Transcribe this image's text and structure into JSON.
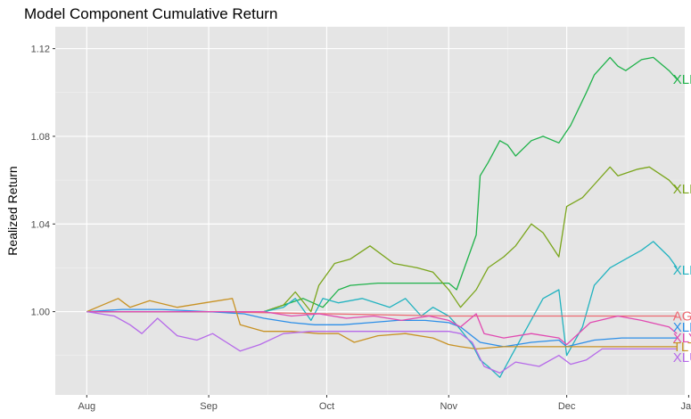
{
  "chart_data": {
    "type": "line",
    "title": "Model Component Cumulative Return",
    "xlabel": "",
    "ylabel": "Realized Return",
    "x_ticks": [
      "Aug",
      "Sep",
      "Oct",
      "Nov",
      "Dec",
      "Jan"
    ],
    "x_tick_dates": [
      "2016-08-01",
      "2016-09-01",
      "2016-10-01",
      "2016-11-01",
      "2016-12-01",
      "2017-01-01"
    ],
    "xlim": [
      "2016-07-24",
      "2016-12-31"
    ],
    "y_ticks": [
      "1.00",
      "1.04",
      "1.08",
      "1.12"
    ],
    "y_tick_values": [
      1.0,
      1.04,
      1.08,
      1.12
    ],
    "ylim": [
      0.962,
      1.13
    ],
    "grid": true,
    "legend": "none (direct labels at line ends)",
    "series": [
      {
        "name": "XLF",
        "color": "#1fb24a",
        "points": [
          [
            "2016-08-01",
            1.0
          ],
          [
            "2016-09-01",
            1.0
          ],
          [
            "2016-09-15",
            1.0
          ],
          [
            "2016-09-20",
            1.003
          ],
          [
            "2016-09-25",
            1.006
          ],
          [
            "2016-09-30",
            1.002
          ],
          [
            "2016-10-04",
            1.01
          ],
          [
            "2016-10-07",
            1.012
          ],
          [
            "2016-10-14",
            1.013
          ],
          [
            "2016-10-21",
            1.013
          ],
          [
            "2016-10-28",
            1.013
          ],
          [
            "2016-11-01",
            1.013
          ],
          [
            "2016-11-03",
            1.01
          ],
          [
            "2016-11-08",
            1.035
          ],
          [
            "2016-11-09",
            1.062
          ],
          [
            "2016-11-11",
            1.068
          ],
          [
            "2016-11-14",
            1.078
          ],
          [
            "2016-11-16",
            1.076
          ],
          [
            "2016-11-18",
            1.071
          ],
          [
            "2016-11-22",
            1.078
          ],
          [
            "2016-11-25",
            1.08
          ],
          [
            "2016-11-29",
            1.077
          ],
          [
            "2016-12-02",
            1.085
          ],
          [
            "2016-12-06",
            1.1
          ],
          [
            "2016-12-08",
            1.108
          ],
          [
            "2016-12-12",
            1.116
          ],
          [
            "2016-12-14",
            1.112
          ],
          [
            "2016-12-16",
            1.11
          ],
          [
            "2016-12-20",
            1.115
          ],
          [
            "2016-12-23",
            1.116
          ],
          [
            "2016-12-27",
            1.11
          ],
          [
            "2016-12-29",
            1.106
          ]
        ]
      },
      {
        "name": "XLE",
        "color": "#7aa51b",
        "points": [
          [
            "2016-08-01",
            1.0
          ],
          [
            "2016-09-01",
            1.0
          ],
          [
            "2016-09-15",
            1.0
          ],
          [
            "2016-09-20",
            1.003
          ],
          [
            "2016-09-23",
            1.009
          ],
          [
            "2016-09-27",
            1.0
          ],
          [
            "2016-09-29",
            1.012
          ],
          [
            "2016-10-03",
            1.022
          ],
          [
            "2016-10-07",
            1.024
          ],
          [
            "2016-10-12",
            1.03
          ],
          [
            "2016-10-18",
            1.022
          ],
          [
            "2016-10-24",
            1.02
          ],
          [
            "2016-10-28",
            1.018
          ],
          [
            "2016-11-01",
            1.01
          ],
          [
            "2016-11-04",
            1.002
          ],
          [
            "2016-11-08",
            1.01
          ],
          [
            "2016-11-11",
            1.02
          ],
          [
            "2016-11-15",
            1.025
          ],
          [
            "2016-11-18",
            1.03
          ],
          [
            "2016-11-22",
            1.04
          ],
          [
            "2016-11-25",
            1.036
          ],
          [
            "2016-11-29",
            1.025
          ],
          [
            "2016-12-01",
            1.048
          ],
          [
            "2016-12-05",
            1.052
          ],
          [
            "2016-12-08",
            1.058
          ],
          [
            "2016-12-12",
            1.066
          ],
          [
            "2016-12-14",
            1.062
          ],
          [
            "2016-12-19",
            1.065
          ],
          [
            "2016-12-22",
            1.066
          ],
          [
            "2016-12-27",
            1.06
          ],
          [
            "2016-12-29",
            1.056
          ]
        ]
      },
      {
        "name": "XLK",
        "color": "#22b3c0",
        "points": [
          [
            "2016-08-01",
            1.0
          ],
          [
            "2016-09-01",
            1.0
          ],
          [
            "2016-09-15",
            1.0
          ],
          [
            "2016-09-20",
            1.002
          ],
          [
            "2016-09-23",
            1.006
          ],
          [
            "2016-09-27",
            0.996
          ],
          [
            "2016-09-30",
            1.006
          ],
          [
            "2016-10-04",
            1.004
          ],
          [
            "2016-10-10",
            1.006
          ],
          [
            "2016-10-17",
            1.002
          ],
          [
            "2016-10-21",
            1.006
          ],
          [
            "2016-10-25",
            0.998
          ],
          [
            "2016-10-28",
            1.002
          ],
          [
            "2016-11-01",
            0.998
          ],
          [
            "2016-11-03",
            0.994
          ],
          [
            "2016-11-07",
            0.985
          ],
          [
            "2016-11-09",
            0.978
          ],
          [
            "2016-11-11",
            0.975
          ],
          [
            "2016-11-14",
            0.97
          ],
          [
            "2016-11-17",
            0.98
          ],
          [
            "2016-11-21",
            0.993
          ],
          [
            "2016-11-25",
            1.006
          ],
          [
            "2016-11-29",
            1.01
          ],
          [
            "2016-12-01",
            0.98
          ],
          [
            "2016-12-05",
            0.993
          ],
          [
            "2016-12-08",
            1.012
          ],
          [
            "2016-12-12",
            1.02
          ],
          [
            "2016-12-16",
            1.024
          ],
          [
            "2016-12-20",
            1.028
          ],
          [
            "2016-12-23",
            1.032
          ],
          [
            "2016-12-27",
            1.025
          ],
          [
            "2016-12-29",
            1.02
          ]
        ]
      },
      {
        "name": "AGG",
        "color": "#ee6a73",
        "points": [
          [
            "2016-08-01",
            1.0
          ],
          [
            "2016-09-01",
            1.0
          ],
          [
            "2016-10-01",
            0.999
          ],
          [
            "2016-11-01",
            0.998
          ],
          [
            "2016-12-01",
            0.998
          ],
          [
            "2016-12-29",
            0.998
          ]
        ]
      },
      {
        "name": "XLP",
        "color": "#2d8fe8",
        "points": [
          [
            "2016-08-01",
            1.0
          ],
          [
            "2016-08-10",
            1.001
          ],
          [
            "2016-08-20",
            1.001
          ],
          [
            "2016-09-01",
            1.0
          ],
          [
            "2016-09-10",
            0.999
          ],
          [
            "2016-09-15",
            0.997
          ],
          [
            "2016-09-22",
            0.995
          ],
          [
            "2016-09-28",
            0.994
          ],
          [
            "2016-10-05",
            0.994
          ],
          [
            "2016-10-12",
            0.995
          ],
          [
            "2016-10-19",
            0.996
          ],
          [
            "2016-10-26",
            0.996
          ],
          [
            "2016-11-01",
            0.995
          ],
          [
            "2016-11-04",
            0.993
          ],
          [
            "2016-11-09",
            0.986
          ],
          [
            "2016-11-15",
            0.984
          ],
          [
            "2016-11-22",
            0.986
          ],
          [
            "2016-11-29",
            0.987
          ],
          [
            "2016-12-01",
            0.984
          ],
          [
            "2016-12-08",
            0.987
          ],
          [
            "2016-12-15",
            0.988
          ],
          [
            "2016-12-22",
            0.988
          ],
          [
            "2016-12-29",
            0.988
          ]
        ]
      },
      {
        "name": "XLY",
        "color": "#e14ab1",
        "points": [
          [
            "2016-08-01",
            1.0
          ],
          [
            "2016-09-01",
            1.0
          ],
          [
            "2016-09-15",
            1.0
          ],
          [
            "2016-09-22",
            0.998
          ],
          [
            "2016-09-29",
            0.999
          ],
          [
            "2016-10-06",
            0.997
          ],
          [
            "2016-10-13",
            0.998
          ],
          [
            "2016-10-20",
            0.996
          ],
          [
            "2016-10-27",
            0.998
          ],
          [
            "2016-11-01",
            0.996
          ],
          [
            "2016-11-04",
            0.993
          ],
          [
            "2016-11-08",
            0.999
          ],
          [
            "2016-11-10",
            0.99
          ],
          [
            "2016-11-15",
            0.988
          ],
          [
            "2016-11-22",
            0.99
          ],
          [
            "2016-11-29",
            0.988
          ],
          [
            "2016-12-01",
            0.985
          ],
          [
            "2016-12-07",
            0.995
          ],
          [
            "2016-12-14",
            0.998
          ],
          [
            "2016-12-20",
            0.996
          ],
          [
            "2016-12-27",
            0.993
          ],
          [
            "2016-12-29",
            0.99
          ]
        ]
      },
      {
        "name": "TLT",
        "color": "#c89224",
        "points": [
          [
            "2016-08-01",
            1.0
          ],
          [
            "2016-08-05",
            1.003
          ],
          [
            "2016-08-09",
            1.006
          ],
          [
            "2016-08-12",
            1.002
          ],
          [
            "2016-08-17",
            1.005
          ],
          [
            "2016-08-24",
            1.002
          ],
          [
            "2016-08-31",
            1.004
          ],
          [
            "2016-09-07",
            1.006
          ],
          [
            "2016-09-09",
            0.994
          ],
          [
            "2016-09-15",
            0.991
          ],
          [
            "2016-09-22",
            0.991
          ],
          [
            "2016-09-29",
            0.99
          ],
          [
            "2016-10-04",
            0.99
          ],
          [
            "2016-10-08",
            0.986
          ],
          [
            "2016-10-14",
            0.989
          ],
          [
            "2016-10-21",
            0.99
          ],
          [
            "2016-10-28",
            0.988
          ],
          [
            "2016-11-01",
            0.985
          ],
          [
            "2016-11-04",
            0.984
          ],
          [
            "2016-11-08",
            0.983
          ],
          [
            "2016-11-15",
            0.984
          ],
          [
            "2016-11-22",
            0.984
          ],
          [
            "2016-11-29",
            0.984
          ],
          [
            "2016-12-06",
            0.984
          ],
          [
            "2016-12-13",
            0.984
          ],
          [
            "2016-12-20",
            0.984
          ],
          [
            "2016-12-29",
            0.984
          ]
        ]
      },
      {
        "name": "XLU",
        "color": "#b66ae9",
        "points": [
          [
            "2016-08-01",
            1.0
          ],
          [
            "2016-08-08",
            0.998
          ],
          [
            "2016-08-12",
            0.994
          ],
          [
            "2016-08-15",
            0.99
          ],
          [
            "2016-08-19",
            0.997
          ],
          [
            "2016-08-24",
            0.989
          ],
          [
            "2016-08-29",
            0.987
          ],
          [
            "2016-09-02",
            0.99
          ],
          [
            "2016-09-09",
            0.982
          ],
          [
            "2016-09-14",
            0.985
          ],
          [
            "2016-09-20",
            0.99
          ],
          [
            "2016-09-27",
            0.991
          ],
          [
            "2016-10-04",
            0.991
          ],
          [
            "2016-10-11",
            0.991
          ],
          [
            "2016-10-18",
            0.991
          ],
          [
            "2016-10-25",
            0.991
          ],
          [
            "2016-11-01",
            0.991
          ],
          [
            "2016-11-04",
            0.99
          ],
          [
            "2016-11-07",
            0.986
          ],
          [
            "2016-11-10",
            0.975
          ],
          [
            "2016-11-14",
            0.972
          ],
          [
            "2016-11-18",
            0.977
          ],
          [
            "2016-11-24",
            0.975
          ],
          [
            "2016-11-29",
            0.98
          ],
          [
            "2016-12-02",
            0.976
          ],
          [
            "2016-12-06",
            0.978
          ],
          [
            "2016-12-10",
            0.983
          ],
          [
            "2016-12-15",
            0.983
          ],
          [
            "2016-12-22",
            0.983
          ],
          [
            "2016-12-29",
            0.983
          ]
        ]
      }
    ],
    "end_labels": [
      {
        "text": "XLF",
        "value": 1.106,
        "color": "#1fb24a"
      },
      {
        "text": "XLE",
        "value": 1.056,
        "color": "#7aa51b"
      },
      {
        "text": "XLK",
        "value": 1.019,
        "color": "#22b3c0"
      },
      {
        "text": "AGG",
        "value": 0.998,
        "color": "#ee6a73"
      },
      {
        "text": "XLP",
        "value": 0.993,
        "color": "#2d8fe8"
      },
      {
        "text": "XLY",
        "value": 0.988,
        "color": "#e14ab1"
      },
      {
        "text": "TLT",
        "value": 0.984,
        "color": "#c89224"
      },
      {
        "text": "XLU",
        "value": 0.979,
        "color": "#b66ae9"
      }
    ]
  }
}
